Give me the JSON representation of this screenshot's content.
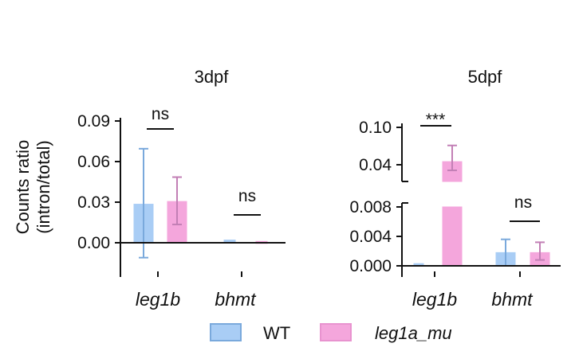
{
  "colors": {
    "wt_fill": "#a9cdf5",
    "wt_edge": "#7aa9dc",
    "mu_fill": "#f4a6dc",
    "mu_edge": "#c27fb5",
    "axis": "#111111"
  },
  "legend": {
    "wt_label": "WT",
    "mu_label": "leg1a_mu"
  },
  "chart_data": [
    {
      "type": "bar",
      "title": "3dpf",
      "ylabel": "Counts ratio\n(intron/total)",
      "ylabel_line1": "Counts ratio",
      "ylabel_line2": "(intron/total)",
      "xlabel": "",
      "categories": [
        "leg1b",
        "bhmt"
      ],
      "ylim": [
        -0.012,
        0.09
      ],
      "ticks": [
        0.0,
        0.03,
        0.06,
        0.09
      ],
      "tick_labels": [
        "0.00",
        "0.03",
        "0.06",
        "0.09"
      ],
      "series": [
        {
          "name": "WT",
          "values": [
            0.0285,
            0.002
          ],
          "err_low": [
            -0.011,
            0.002
          ],
          "err_high": [
            0.0695,
            0.002
          ]
        },
        {
          "name": "leg1a_mu",
          "values": [
            0.0305,
            0.001
          ],
          "err_low": [
            0.0135,
            0.001
          ],
          "err_high": [
            0.0485,
            0.001
          ]
        }
      ],
      "significance": [
        "ns",
        "ns"
      ]
    },
    {
      "type": "bar",
      "title": "5dpf",
      "xlabel": "",
      "categories": [
        "leg1b",
        "bhmt"
      ],
      "broken_axis": true,
      "lower_ylim": [
        0.0,
        0.008
      ],
      "upper_ylim": [
        0.02,
        0.1
      ],
      "ticks": [
        0.0,
        0.004,
        0.008,
        0.04,
        0.1
      ],
      "tick_labels": [
        "0.000",
        "0.004",
        "0.008",
        "0.04",
        "0.10"
      ],
      "series": [
        {
          "name": "WT",
          "values": [
            0.0003,
            0.0018
          ],
          "err_low": [
            0.0003,
            0.0
          ],
          "err_high": [
            0.0003,
            0.0036
          ]
        },
        {
          "name": "leg1a_mu",
          "values": [
            0.045,
            0.0018
          ],
          "err_low": [
            0.031,
            0.0008
          ],
          "err_high": [
            0.071,
            0.0032
          ]
        }
      ],
      "significance": [
        "***",
        "ns"
      ]
    }
  ]
}
